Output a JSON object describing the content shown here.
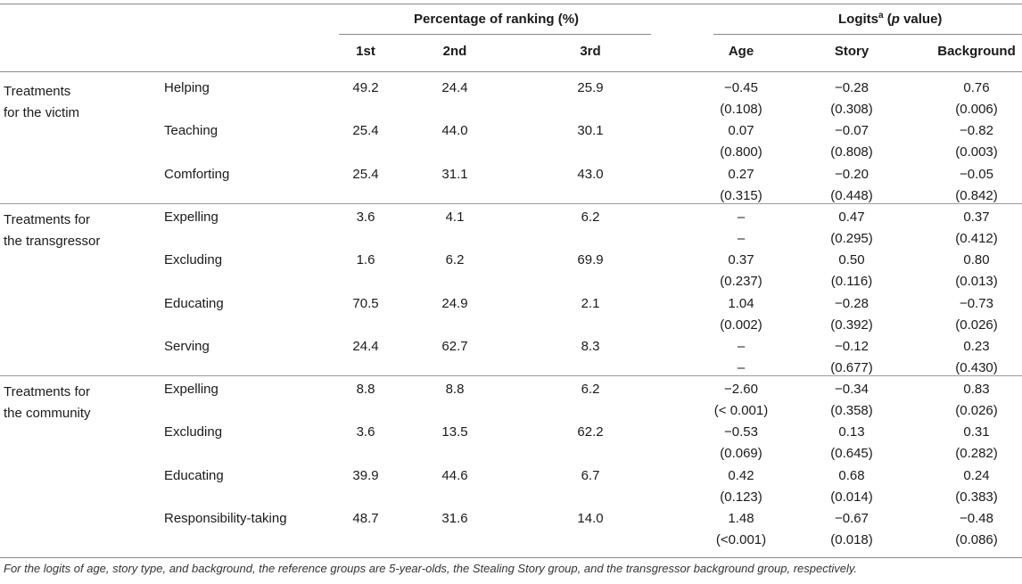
{
  "header": {
    "group1": "Percentage of ranking (%)",
    "group2_pre": "Logits",
    "group2_sup": "a",
    "group2_p": "p",
    "group2_post": " value)",
    "group2_open": " (",
    "columns": [
      "1st",
      "2nd",
      "3rd",
      "Age",
      "Story",
      "Background"
    ]
  },
  "categories": [
    {
      "line1": "Treatments",
      "line2": "for the victim"
    },
    {
      "line1": "Treatments for",
      "line2": "the transgressor"
    },
    {
      "line1": "Treatments for",
      "line2": "the community"
    }
  ],
  "rows": [
    {
      "label": "Helping",
      "first": "49.2",
      "second": "24.4",
      "third": "25.9",
      "age": "−0.45",
      "age_p": "(0.108)",
      "story": "−0.28",
      "story_p": "(0.308)",
      "bg": "0.76",
      "bg_p": "(0.006)"
    },
    {
      "label": "Teaching",
      "first": "25.4",
      "second": "44.0",
      "third": "30.1",
      "age": "0.07",
      "age_p": "(0.800)",
      "story": "−0.07",
      "story_p": "(0.808)",
      "bg": "−0.82",
      "bg_p": "(0.003)"
    },
    {
      "label": "Comforting",
      "first": "25.4",
      "second": "31.1",
      "third": "43.0",
      "age": "0.27",
      "age_p": "(0.315)",
      "story": "−0.20",
      "story_p": "(0.448)",
      "bg": "−0.05",
      "bg_p": "(0.842)"
    },
    {
      "label": "Expelling",
      "first": "3.6",
      "second": "4.1",
      "third": "6.2",
      "age": "–",
      "age_p": "–",
      "story": "0.47",
      "story_p": "(0.295)",
      "bg": "0.37",
      "bg_p": "(0.412)"
    },
    {
      "label": "Excluding",
      "first": "1.6",
      "second": "6.2",
      "third": "69.9",
      "age": "0.37",
      "age_p": "(0.237)",
      "story": "0.50",
      "story_p": "(0.116)",
      "bg": "0.80",
      "bg_p": "(0.013)"
    },
    {
      "label": "Educating",
      "first": "70.5",
      "second": "24.9",
      "third": "2.1",
      "age": "1.04",
      "age_p": "(0.002)",
      "story": "−0.28",
      "story_p": "(0.392)",
      "bg": "−0.73",
      "bg_p": "(0.026)"
    },
    {
      "label": "Serving",
      "first": "24.4",
      "second": "62.7",
      "third": "8.3",
      "age": "–",
      "age_p": "–",
      "story": "−0.12",
      "story_p": "(0.677)",
      "bg": "0.23",
      "bg_p": "(0.430)"
    },
    {
      "label": "Expelling",
      "first": "8.8",
      "second": "8.8",
      "third": "6.2",
      "age": "−2.60",
      "age_p": "(< 0.001)",
      "story": "−0.34",
      "story_p": "(0.358)",
      "bg": "0.83",
      "bg_p": "(0.026)"
    },
    {
      "label": "Excluding",
      "first": "3.6",
      "second": "13.5",
      "third": "62.2",
      "age": "−0.53",
      "age_p": "(0.069)",
      "story": "0.13",
      "story_p": "(0.645)",
      "bg": "0.31",
      "bg_p": "(0.282)"
    },
    {
      "label": "Educating",
      "first": "39.9",
      "second": "44.6",
      "third": "6.7",
      "age": "0.42",
      "age_p": "(0.123)",
      "story": "0.68",
      "story_p": "(0.014)",
      "bg": "0.24",
      "bg_p": "(0.383)"
    },
    {
      "label": "Responsibility-taking",
      "first": "48.7",
      "second": "31.6",
      "third": "14.0",
      "age": "1.48",
      "age_p": "(<0.001)",
      "story": "−0.67",
      "story_p": "(0.018)",
      "bg": "−0.48",
      "bg_p": "(0.086)"
    }
  ],
  "footnote": "For the logits of age, story type, and background, the reference groups are 5-year-olds, the Stealing Story group, and the transgressor background group, respectively."
}
